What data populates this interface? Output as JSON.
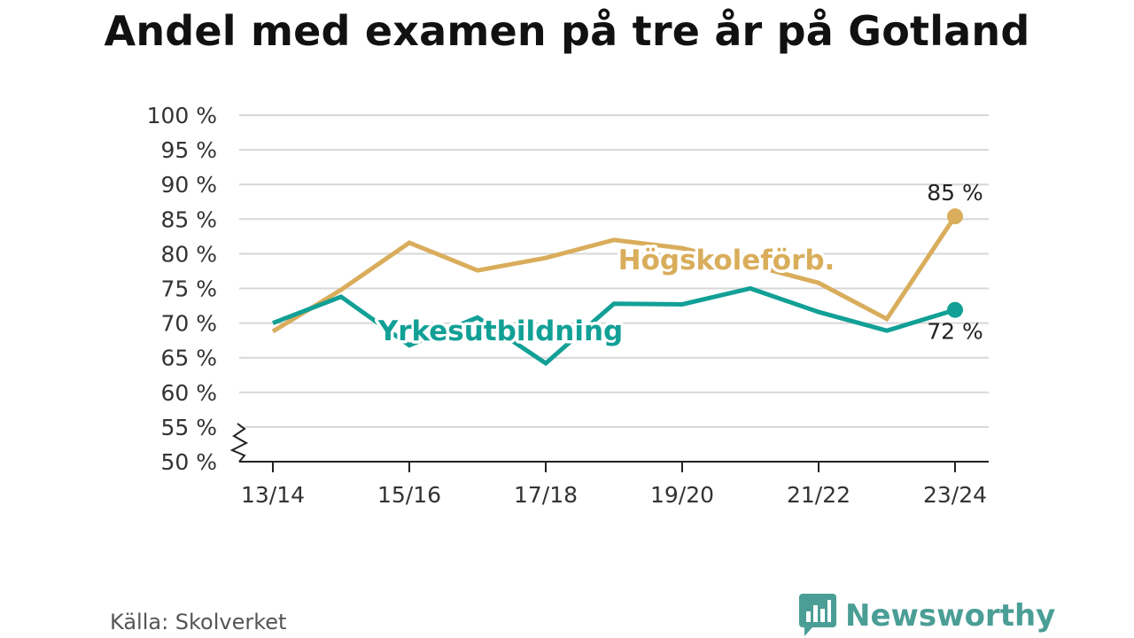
{
  "page": {
    "title": "Andel med examen på tre år på Gotland",
    "source": "Källa: Skolverket",
    "brand": "Newsworthy"
  },
  "chart_data": {
    "type": "line",
    "title": "Andel med examen på tre år på Gotland",
    "xlabel": "",
    "ylabel": "",
    "x": [
      "13/14",
      "14/15",
      "15/16",
      "16/17",
      "17/18",
      "18/19",
      "19/20",
      "20/21",
      "21/22",
      "22/23",
      "23/24"
    ],
    "xticks": [
      "13/14",
      "15/16",
      "17/18",
      "19/20",
      "21/22",
      "23/24"
    ],
    "yticks": [
      50,
      55,
      60,
      65,
      70,
      75,
      80,
      85,
      90,
      95,
      100
    ],
    "ytick_suffix": " %",
    "ylim": [
      50,
      100
    ],
    "axis_break": true,
    "grid": true,
    "series": [
      {
        "name": "Högskoleförb.",
        "color": "#d9ad5b",
        "values": [
          68.8,
          74.8,
          81.6,
          77.6,
          79.4,
          82.0,
          80.8,
          78.4,
          75.8,
          70.6,
          85.4
        ],
        "end_label": "85 %",
        "end_label_position": "above"
      },
      {
        "name": "Yrkesutbildning",
        "color": "#12a096",
        "values": [
          70.0,
          73.8,
          66.8,
          70.8,
          64.2,
          72.8,
          72.7,
          75.0,
          71.6,
          68.9,
          71.9
        ],
        "end_label": "72 %",
        "end_label_position": "below"
      }
    ]
  }
}
